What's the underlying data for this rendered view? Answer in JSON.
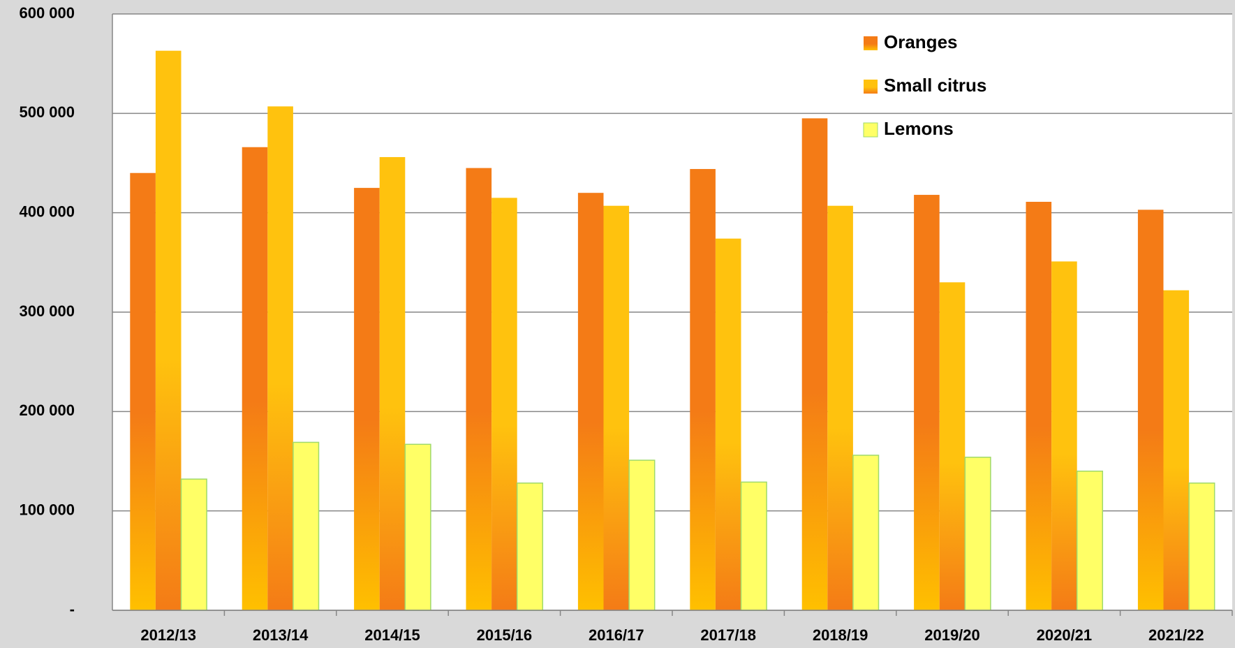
{
  "chart_data": {
    "type": "bar",
    "categories": [
      "2012/13",
      "2013/14",
      "2014/15",
      "2015/16",
      "2016/17",
      "2017/18",
      "2018/19",
      "2019/20",
      "2020/21",
      "2021/22"
    ],
    "series": [
      {
        "name": "Oranges",
        "color": "#f47b16",
        "values": [
          440000,
          466000,
          425000,
          445000,
          420000,
          444000,
          495000,
          418000,
          411000,
          403000
        ]
      },
      {
        "name": "Small citrus",
        "color": "#ffc20e",
        "values": [
          563000,
          507000,
          456000,
          415000,
          407000,
          374000,
          407000,
          330000,
          351000,
          322000
        ]
      },
      {
        "name": "Lemons",
        "color": "#ffff66",
        "values": [
          132000,
          169000,
          167000,
          128000,
          151000,
          129000,
          156000,
          154000,
          140000,
          128000
        ]
      }
    ],
    "ylim": [
      0,
      600000
    ],
    "yticks": [
      {
        "value": 0,
        "label": "-"
      },
      {
        "value": 100000,
        "label": "100 000"
      },
      {
        "value": 200000,
        "label": "200 000"
      },
      {
        "value": 300000,
        "label": "300 000"
      },
      {
        "value": 400000,
        "label": "400 000"
      },
      {
        "value": 500000,
        "label": "500 000"
      },
      {
        "value": 600000,
        "label": "600 000"
      }
    ],
    "grid": true,
    "legend": "top-right"
  }
}
